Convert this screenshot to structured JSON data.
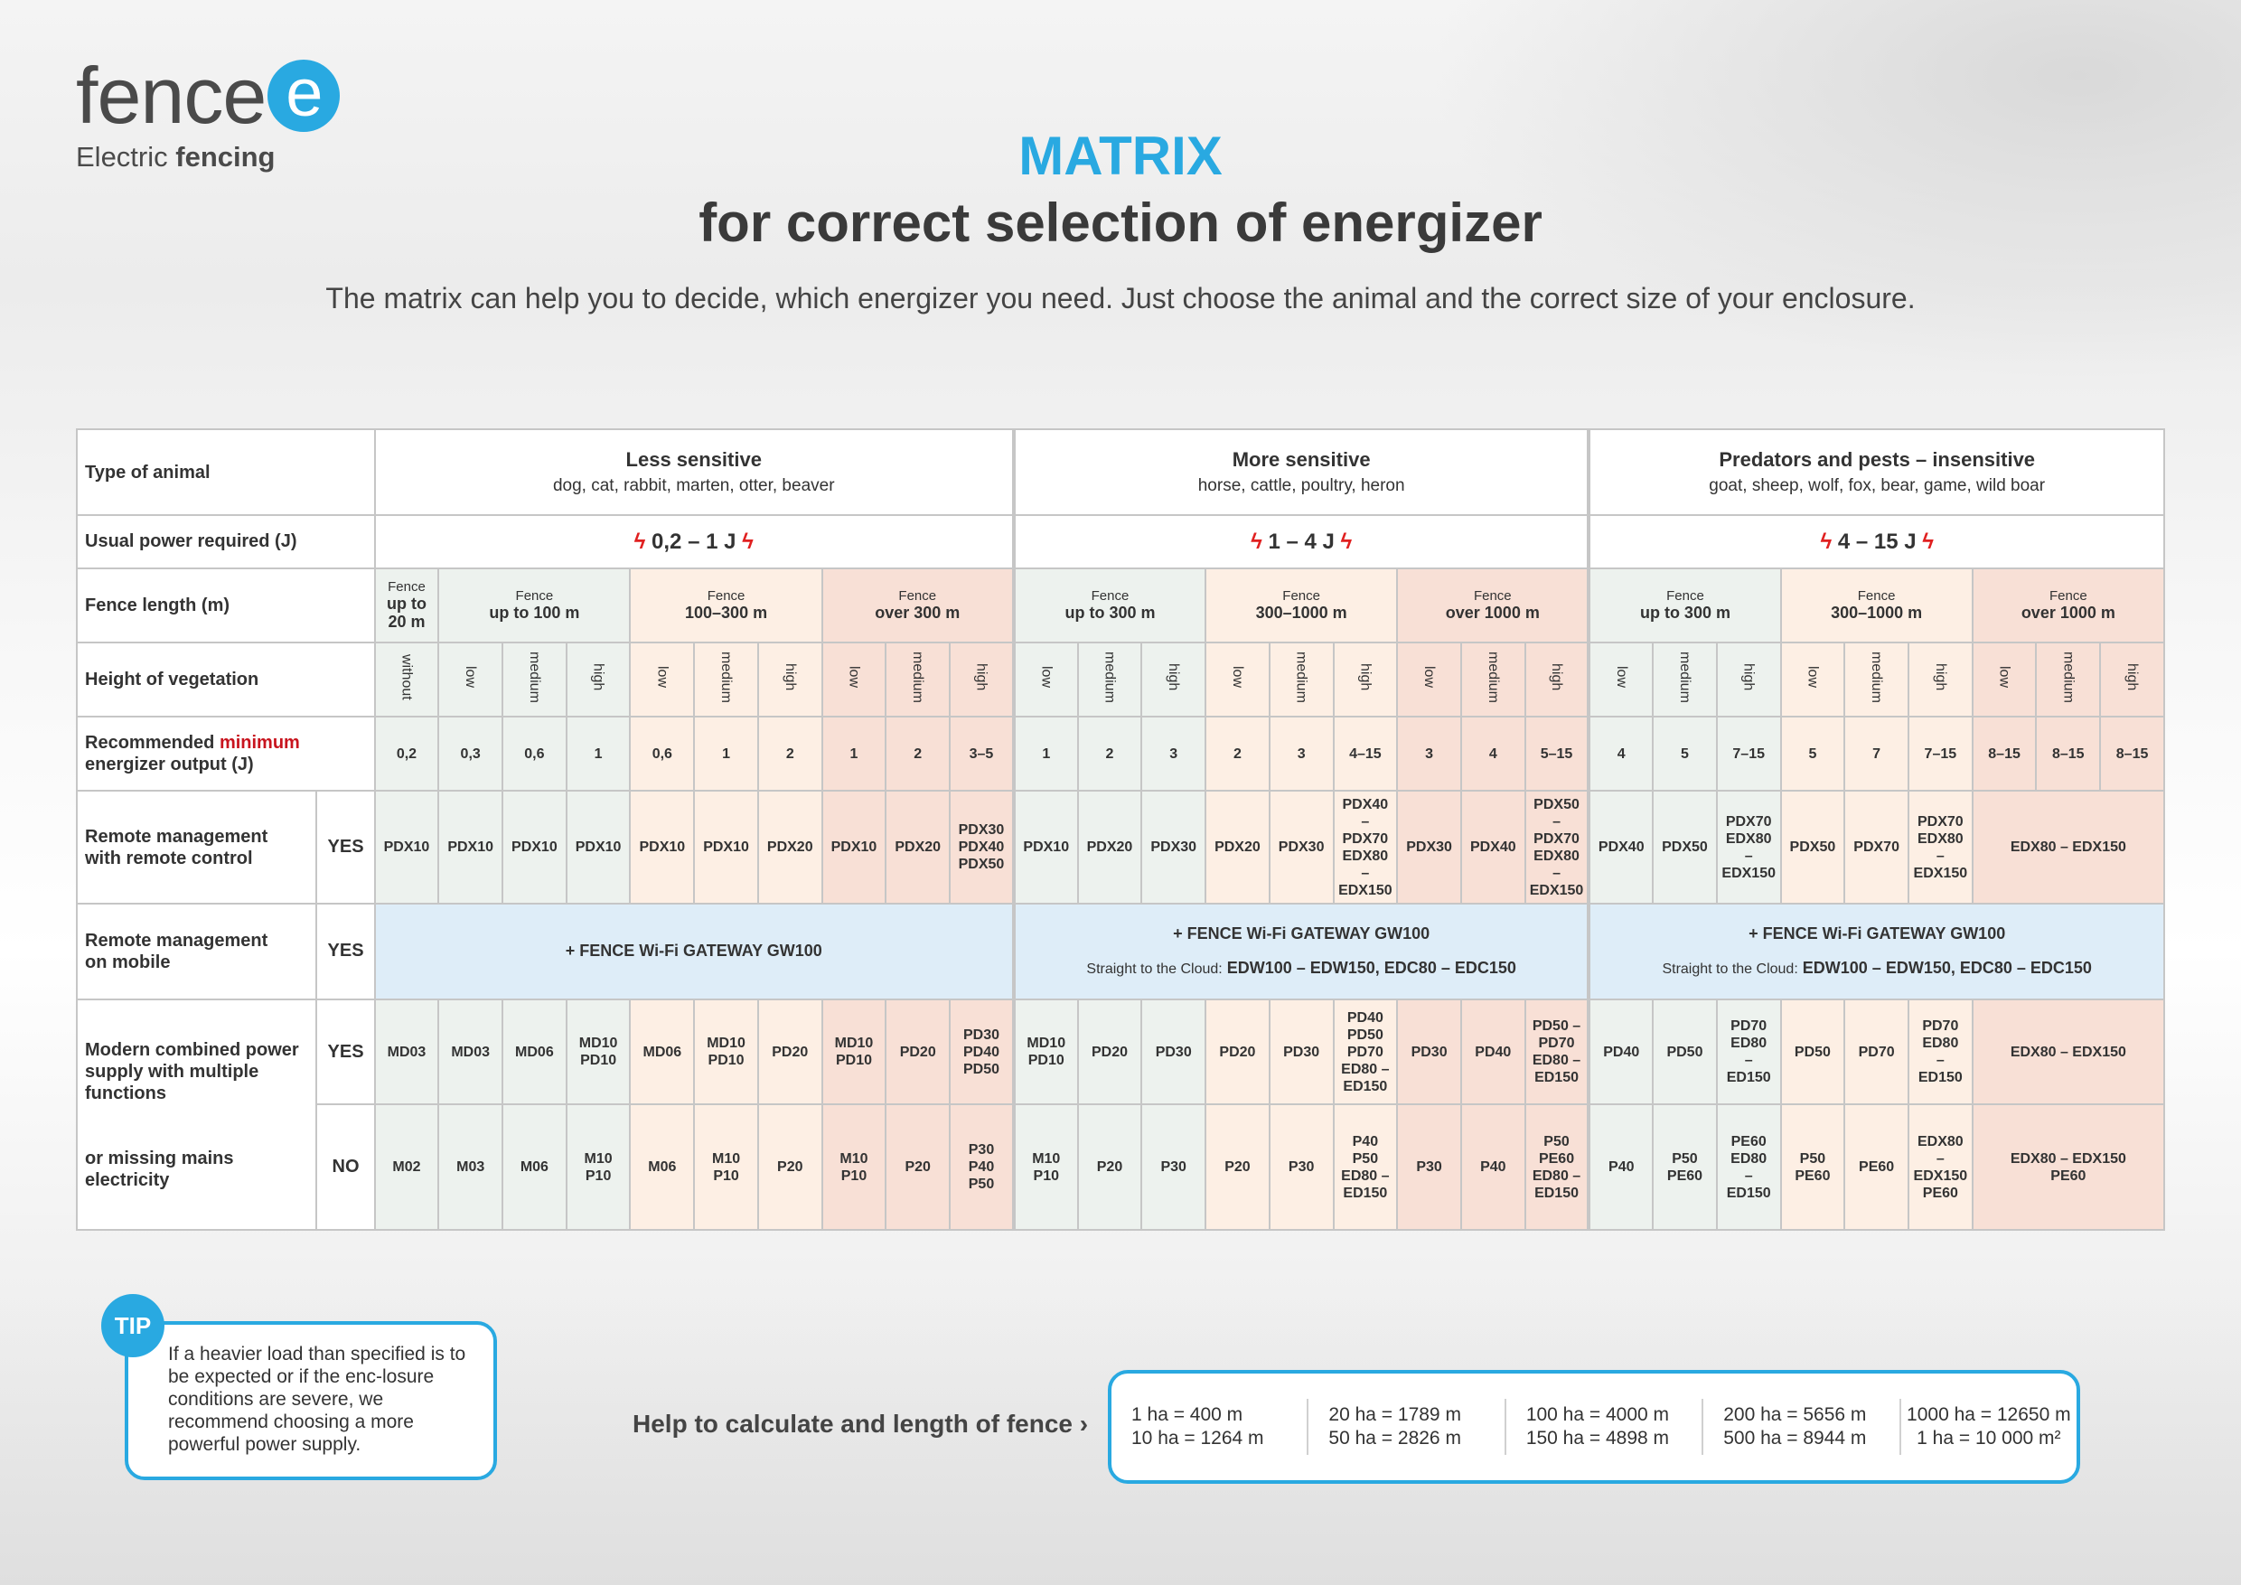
{
  "logo": {
    "word": "fence",
    "e": "e",
    "tag_normal": "Electric",
    "tag_bold": "fencing"
  },
  "header": {
    "title1": "MATRIX",
    "title2": "for correct selection of energizer",
    "subtitle": "The matrix can help you to decide, which energizer you need. Just choose the animal and the correct size of your enclosure."
  },
  "rows": {
    "type": "Type of animal",
    "power": "Usual power required (J)",
    "length": "Fence length (m)",
    "height": "Height of vegetation",
    "rec_a": "Recommended",
    "rec_b": "minimum",
    "rec_c": "energizer output (J)",
    "remote1_a": "Remote management",
    "remote1_b": "with remote control",
    "remote2_a": "Remote management",
    "remote2_b": "on mobile",
    "modern_a": "Modern combined power",
    "modern_b": "supply with multiple",
    "modern_c": "functions",
    "missing_a": "or missing mains",
    "missing_b": "electricity",
    "yes": "YES",
    "no": "NO"
  },
  "groups": [
    {
      "name": "Less sensitive",
      "animals": "dog, cat, rabbit, marten, otter, beaver",
      "power": "0,2 – 1 J",
      "lengths": [
        {
          "a": "Fence",
          "b": "up to",
          "c": "20 m"
        },
        {
          "a": "Fence",
          "b": "up to 100 m"
        },
        {
          "a": "Fence",
          "b": "100–300 m"
        },
        {
          "a": "Fence",
          "b": "over 300 m"
        }
      ],
      "gateway": "+ FENCE Wi-Fi GATEWAY GW100"
    },
    {
      "name": "More sensitive",
      "animals": "horse, cattle, poultry, heron",
      "power": "1 – 4 J",
      "lengths": [
        {
          "a": "Fence",
          "b": "up to 300 m"
        },
        {
          "a": "Fence",
          "b": "300–1000 m"
        },
        {
          "a": "Fence",
          "b": "over 1000 m"
        }
      ],
      "gateway": "+ FENCE Wi-Fi GATEWAY GW100",
      "cloud_a": "Straight to the Cloud:",
      "cloud_b": "EDW100 – EDW150, EDC80 – EDC150"
    },
    {
      "name": "Predators and pests – insensitive",
      "animals": "goat, sheep, wolf, fox, bear, game, wild boar",
      "power": "4 – 15 J",
      "lengths": [
        {
          "a": "Fence",
          "b": "up to 300 m"
        },
        {
          "a": "Fence",
          "b": "300–1000 m"
        },
        {
          "a": "Fence",
          "b": "over 1000 m"
        }
      ],
      "gateway": "+ FENCE Wi-Fi GATEWAY GW100",
      "cloud_a": "Straight to the Cloud:",
      "cloud_b": "EDW100 – EDW150, EDC80 – EDC150"
    }
  ],
  "veg": {
    "without": "without",
    "low": "low",
    "medium": "medium",
    "high": "high"
  },
  "rec": [
    "0,2",
    "0,3",
    "0,6",
    "1",
    "0,6",
    "1",
    "2",
    "1",
    "2",
    "3–5",
    "1",
    "2",
    "3",
    "2",
    "3",
    "4–15",
    "3",
    "4",
    "5–15",
    "4",
    "5",
    "7–15",
    "5",
    "7",
    "7–15",
    "8–15",
    "8–15",
    "8–15"
  ],
  "remote": [
    "PDX10",
    "PDX10",
    "PDX10",
    "PDX10",
    "PDX10",
    "PDX10",
    "PDX20",
    "PDX10",
    "PDX20",
    "PDX30\nPDX40\nPDX50",
    "PDX10",
    "PDX20",
    "PDX30",
    "PDX20",
    "PDX30",
    "PDX40\n–\nPDX70\nEDX80\n–\nEDX150",
    "PDX30",
    "PDX40",
    "PDX50\n–\nPDX70\nEDX80\n–\nEDX150",
    "PDX40",
    "PDX50",
    "PDX70\nEDX80\n–\nEDX150",
    "PDX50",
    "PDX70",
    "PDX70\nEDX80\n–\nEDX150",
    "EDX80 – EDX150"
  ],
  "modern_yes": [
    "MD03",
    "MD03",
    "MD06",
    "MD10\nPD10",
    "MD06",
    "MD10\nPD10",
    "PD20",
    "MD10\nPD10",
    "PD20",
    "PD30\nPD40\nPD50",
    "MD10\nPD10",
    "PD20",
    "PD30",
    "PD20",
    "PD30",
    "PD40\nPD50\nPD70\nED80 –\nED150",
    "PD30",
    "PD40",
    "PD50 –\nPD70\nED80 –\nED150",
    "PD40",
    "PD50",
    "PD70\nED80\n–\nED150",
    "PD50",
    "PD70",
    "PD70\nED80\n–\nED150",
    "EDX80 – EDX150"
  ],
  "modern_no": [
    "M02",
    "M03",
    "M06",
    "M10\nP10",
    "M06",
    "M10\nP10",
    "P20",
    "M10\nP10",
    "P20",
    "P30\nP40\nP50",
    "M10\nP10",
    "P20",
    "P30",
    "P20",
    "P30",
    "P40\nP50\nED80 –\nED150",
    "P30",
    "P40",
    "P50\nPE60\nED80 –\nED150",
    "P40",
    "P50\nPE60",
    "PE60\nED80\n–\nED150",
    "P50\nPE60",
    "PE60",
    "EDX80\n–\nEDX150\nPE60",
    "EDX80 – EDX150\nPE60"
  ],
  "tip": {
    "badge": "TIP",
    "text": "If a heavier load than specified is to be expected or if the enc-losure conditions are severe, we recommend choosing a more powerful power supply."
  },
  "help": {
    "label": "Help to calculate and length of fence ›",
    "cols": [
      [
        "1 ha = 400 m",
        "10 ha = 1264 m"
      ],
      [
        "20 ha = 1789 m",
        "50 ha = 2826 m"
      ],
      [
        "100 ha = 4000 m",
        "150 ha = 4898 m"
      ],
      [
        "200 ha = 5656 m",
        "500 ha = 8944 m"
      ],
      [
        "1000 ha = 12650 m",
        "1 ha = 10 000 m²"
      ]
    ]
  },
  "colors": {
    "accent": "#29a9e1",
    "highlight": "#c8141e",
    "green": "#edf2ee",
    "orange": "#fdefe4",
    "red": "#f8e0d6",
    "blue": "#deedf8"
  }
}
